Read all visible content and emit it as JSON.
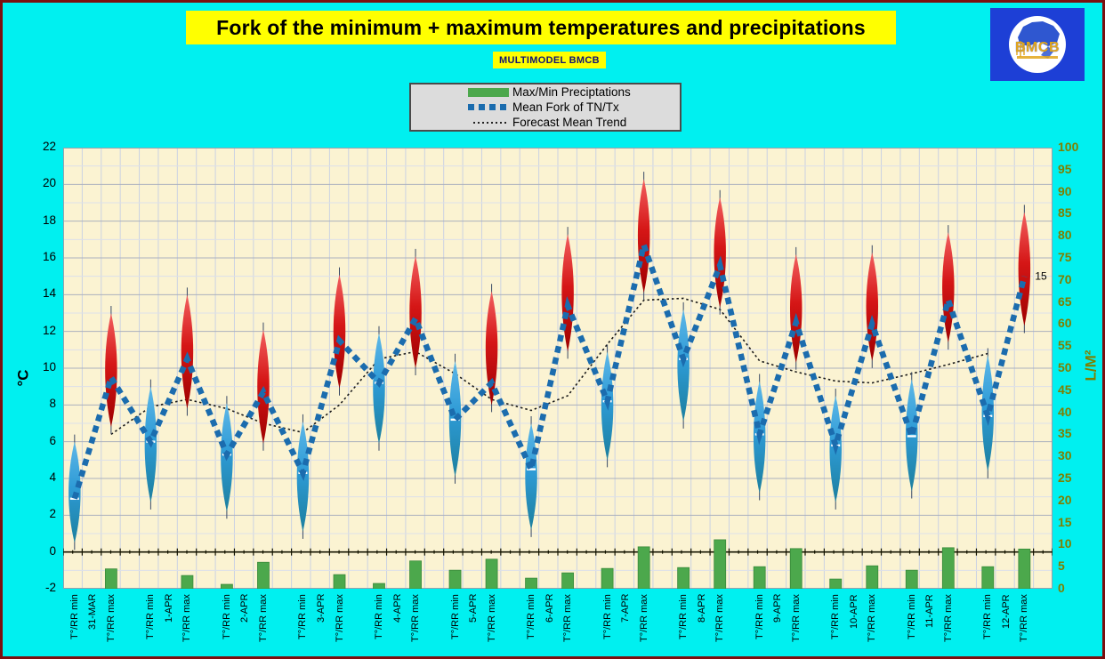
{
  "page": {
    "background": "#00F0F0",
    "border_color": "#7B0F0F"
  },
  "title": {
    "text": "Fork of the minimum + maximum temperatures and precipitations",
    "bg": "#FFFF00"
  },
  "subtitle": {
    "text": "MULTIMODEL BMCB",
    "bg": "#FFFF00"
  },
  "logo": {
    "text": "BMCB"
  },
  "legend": {
    "items": [
      {
        "label": "Max/Min Preciptations",
        "swatch": "bar",
        "color": "#4CA84C"
      },
      {
        "label": "Mean Fork of TN/Tx",
        "swatch": "dashed",
        "color": "#1B6CAE"
      },
      {
        "label": "Forecast Mean Trend",
        "swatch": "dotted",
        "color": "#000000"
      }
    ]
  },
  "chart_data": {
    "type": "combo",
    "series_names": [
      "Max/Min Preciptations",
      "Mean Fork of TN/Tx",
      "Forecast Mean Trend"
    ],
    "left_axis": {
      "label": "°C",
      "min": -2,
      "max": 22,
      "tick_step": 2
    },
    "right_axis": {
      "label": "L/M²",
      "min": 0,
      "max": 100,
      "tick_step": 5
    },
    "column_labels": {
      "min": "T°/RR min",
      "max": "T°/RR max"
    },
    "annotation": {
      "text": "15",
      "day_index": 12,
      "at": "max_mean"
    },
    "colors": {
      "bar": "#4CA84C",
      "bar_edge": "#3A8A3A",
      "mean_line": "#1B6CAE",
      "trend": "#1A1A1A",
      "red_fork": [
        "#F26060",
        "#D51616",
        "#9E0000"
      ],
      "blue_fork": [
        "#5FB8E8",
        "#2E9BD6",
        "#1C7F9E"
      ],
      "plot_bg": "#FBF3D2",
      "grid_v": "#CBD2E2",
      "grid_h_minor": "#DCE0EA",
      "grid_h_major": "#ABB1BD",
      "axis_label_right": "#7F7F00"
    },
    "days": [
      {
        "date": "31-MAR",
        "min": {
          "mean": 2.9,
          "lo": 0.5,
          "hi": 6.0,
          "precip": 0
        },
        "max": {
          "mean": 9.5,
          "lo": 6.8,
          "hi": 13.0,
          "precip": 4.5
        },
        "trend_min": null,
        "trend_max": 6.4
      },
      {
        "date": "1-APR",
        "min": {
          "mean": 6.0,
          "lo": 2.7,
          "hi": 9.0,
          "precip": 0
        },
        "max": {
          "mean": 10.5,
          "lo": 7.8,
          "hi": 14.0,
          "precip": 3.0
        },
        "trend_min": 7.9,
        "trend_max": 8.3
      },
      {
        "date": "2-APR",
        "min": {
          "mean": 5.3,
          "lo": 2.2,
          "hi": 8.1,
          "precip": 1.0
        },
        "max": {
          "mean": 8.7,
          "lo": 5.9,
          "hi": 12.1,
          "precip": 6.0
        },
        "trend_min": 7.8,
        "trend_max": 7.0
      },
      {
        "date": "3-APR",
        "min": {
          "mean": 4.3,
          "lo": 1.1,
          "hi": 7.1,
          "precip": 0
        },
        "max": {
          "mean": 11.5,
          "lo": 8.9,
          "hi": 15.1,
          "precip": 3.2
        },
        "trend_min": 6.5,
        "trend_max": 8.0
      },
      {
        "date": "4-APR",
        "min": {
          "mean": 9.2,
          "lo": 5.9,
          "hi": 11.9,
          "precip": 1.2
        },
        "max": {
          "mean": 12.7,
          "lo": 10.0,
          "hi": 16.1,
          "precip": 6.3
        },
        "trend_min": 10.5,
        "trend_max": 10.9
      },
      {
        "date": "5-APR",
        "min": {
          "mean": 7.2,
          "lo": 4.1,
          "hi": 10.4,
          "precip": 4.2
        },
        "max": {
          "mean": 9.2,
          "lo": 8.0,
          "hi": 14.2,
          "precip": 6.7
        },
        "trend_min": 9.7,
        "trend_max": 8.3
      },
      {
        "date": "6-APR",
        "min": {
          "mean": 4.5,
          "lo": 1.2,
          "hi": 7.0,
          "precip": 2.4
        },
        "max": {
          "mean": 13.4,
          "lo": 10.9,
          "hi": 17.3,
          "precip": 3.6
        },
        "trend_min": 7.7,
        "trend_max": 8.5
      },
      {
        "date": "7-APR",
        "min": {
          "mean": 8.2,
          "lo": 5.0,
          "hi": 10.9,
          "precip": 4.6
        },
        "max": {
          "mean": 16.7,
          "lo": 14.1,
          "hi": 20.3,
          "precip": 9.5
        },
        "trend_min": 11.3,
        "trend_max": 13.7
      },
      {
        "date": "8-APR",
        "min": {
          "mean": 10.5,
          "lo": 7.1,
          "hi": 13.2,
          "precip": 4.8
        },
        "max": {
          "mean": 15.6,
          "lo": 13.3,
          "hi": 19.3,
          "precip": 11.1
        },
        "trend_min": 13.8,
        "trend_max": 13.2
      },
      {
        "date": "9-APR",
        "min": {
          "mean": 6.4,
          "lo": 3.2,
          "hi": 9.3,
          "precip": 5.0
        },
        "max": {
          "mean": 12.5,
          "lo": 10.3,
          "hi": 16.2,
          "precip": 9.1
        },
        "trend_min": 10.4,
        "trend_max": 9.8
      },
      {
        "date": "10-APR",
        "min": {
          "mean": 5.8,
          "lo": 2.7,
          "hi": 8.5,
          "precip": 2.2
        },
        "max": {
          "mean": 12.4,
          "lo": 10.4,
          "hi": 16.3,
          "precip": 5.2
        },
        "trend_min": 9.3,
        "trend_max": 9.2
      },
      {
        "date": "11-APR",
        "min": {
          "mean": 6.3,
          "lo": 3.3,
          "hi": 9.4,
          "precip": 4.2
        },
        "max": {
          "mean": 13.7,
          "lo": 11.4,
          "hi": 17.4,
          "precip": 9.3
        },
        "trend_min": 9.7,
        "trend_max": 10.2
      },
      {
        "date": "12-APR",
        "min": {
          "mean": 7.4,
          "lo": 4.4,
          "hi": 10.7,
          "precip": 5.0
        },
        "max": {
          "mean": 15.0,
          "lo": 12.3,
          "hi": 18.5,
          "precip": 9.0
        },
        "trend_min": 10.8,
        "trend_max": null
      }
    ]
  }
}
